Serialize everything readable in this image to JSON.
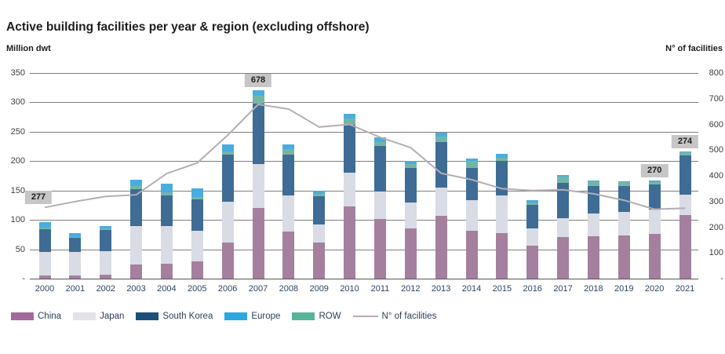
{
  "chart_data": {
    "type": "bar",
    "subtype": "stacked-bar-with-line",
    "title": "Active building facilities per year & region (excluding offshore)",
    "left_axis": {
      "label": "Million dwt",
      "max": 350,
      "ticks": [
        {
          "label": "350",
          "value": 350
        },
        {
          "label": "300",
          "value": 300
        },
        {
          "label": "250",
          "value": 250
        },
        {
          "label": "200",
          "value": 200
        },
        {
          "label": "150",
          "value": 150
        },
        {
          "label": "100",
          "value": 100
        },
        {
          "label": "50",
          "value": 50
        },
        {
          "label": "-",
          "value": 0
        }
      ]
    },
    "right_axis": {
      "label": "N° of facilities",
      "max": 800,
      "ticks": [
        {
          "label": "800",
          "value": 800
        },
        {
          "label": "700",
          "value": 700
        },
        {
          "label": "600",
          "value": 600
        },
        {
          "label": "500",
          "value": 500
        },
        {
          "label": "400",
          "value": 400
        },
        {
          "label": "300",
          "value": 300
        },
        {
          "label": "200",
          "value": 200
        },
        {
          "label": "100",
          "value": 100
        },
        {
          "label": "-",
          "value": 0
        }
      ]
    },
    "categories": [
      "2000",
      "2001",
      "2002",
      "2003",
      "2004",
      "2005",
      "2006",
      "2007",
      "2008",
      "2009",
      "2010",
      "2011",
      "2012",
      "2013",
      "2014",
      "2015",
      "2016",
      "2017",
      "2018",
      "2019",
      "2020",
      "2021"
    ],
    "series": [
      {
        "name": "China",
        "color": "#a57f9e",
        "values": [
          5,
          6,
          7,
          24,
          26,
          30,
          61,
          120,
          80,
          61,
          123,
          102,
          85,
          107,
          82,
          77,
          56,
          71,
          72,
          73,
          76,
          108
        ]
      },
      {
        "name": "Japan",
        "color": "#d9dce4",
        "values": [
          40,
          39,
          40,
          66,
          64,
          52,
          70,
          75,
          62,
          31,
          57,
          46,
          44,
          48,
          51,
          65,
          29,
          32,
          39,
          40,
          41,
          35
        ]
      },
      {
        "name": "South Korea",
        "color": "#3e6c95",
        "values": [
          39,
          24,
          36,
          62,
          52,
          53,
          80,
          103,
          69,
          48,
          82,
          78,
          60,
          77,
          56,
          59,
          40,
          60,
          47,
          45,
          43,
          67
        ]
      },
      {
        "name": "ROW",
        "color": "#74b6a6",
        "values": [
          3,
          2,
          3,
          6,
          5,
          4,
          6,
          13,
          9,
          4,
          10,
          6,
          6,
          10,
          11,
          5,
          4,
          10,
          7,
          6,
          4,
          5
        ]
      },
      {
        "name": "Europe",
        "color": "#49ade0",
        "values": [
          9,
          7,
          4,
          10,
          15,
          14,
          12,
          10,
          8,
          6,
          8,
          8,
          5,
          6,
          4,
          6,
          4,
          4,
          2,
          2,
          3,
          2
        ]
      }
    ],
    "line": {
      "name": "N° of facilities",
      "color": "#b5adb5",
      "values": [
        277,
        300,
        320,
        326,
        409,
        450,
        558,
        678,
        660,
        590,
        600,
        550,
        510,
        410,
        385,
        350,
        343,
        346,
        330,
        305,
        270,
        274
      ]
    },
    "callouts": [
      {
        "year": "2000",
        "text": "277",
        "anchor": "line",
        "dx": -8
      },
      {
        "year": "2007",
        "text": "678",
        "anchor": "bar",
        "dx": 0
      },
      {
        "year": "2020",
        "text": "270",
        "anchor": "bar",
        "dx": 0
      },
      {
        "year": "2021",
        "text": "274",
        "anchor": "bar",
        "dx": 0
      }
    ],
    "legend": [
      {
        "label": "China",
        "type": "swatch",
        "color": "#a4699c"
      },
      {
        "label": "Japan",
        "type": "swatch",
        "color": "#e2e2e8"
      },
      {
        "label": "South Korea",
        "type": "swatch",
        "color": "#1b4f7b"
      },
      {
        "label": "Europe",
        "type": "swatch",
        "color": "#29a9e0"
      },
      {
        "label": "ROW",
        "type": "swatch",
        "color": "#56b598"
      },
      {
        "label": "N° of facilities",
        "type": "line",
        "color": "#b5adb5"
      }
    ],
    "grid": true,
    "legend_position": "bottom-left"
  }
}
